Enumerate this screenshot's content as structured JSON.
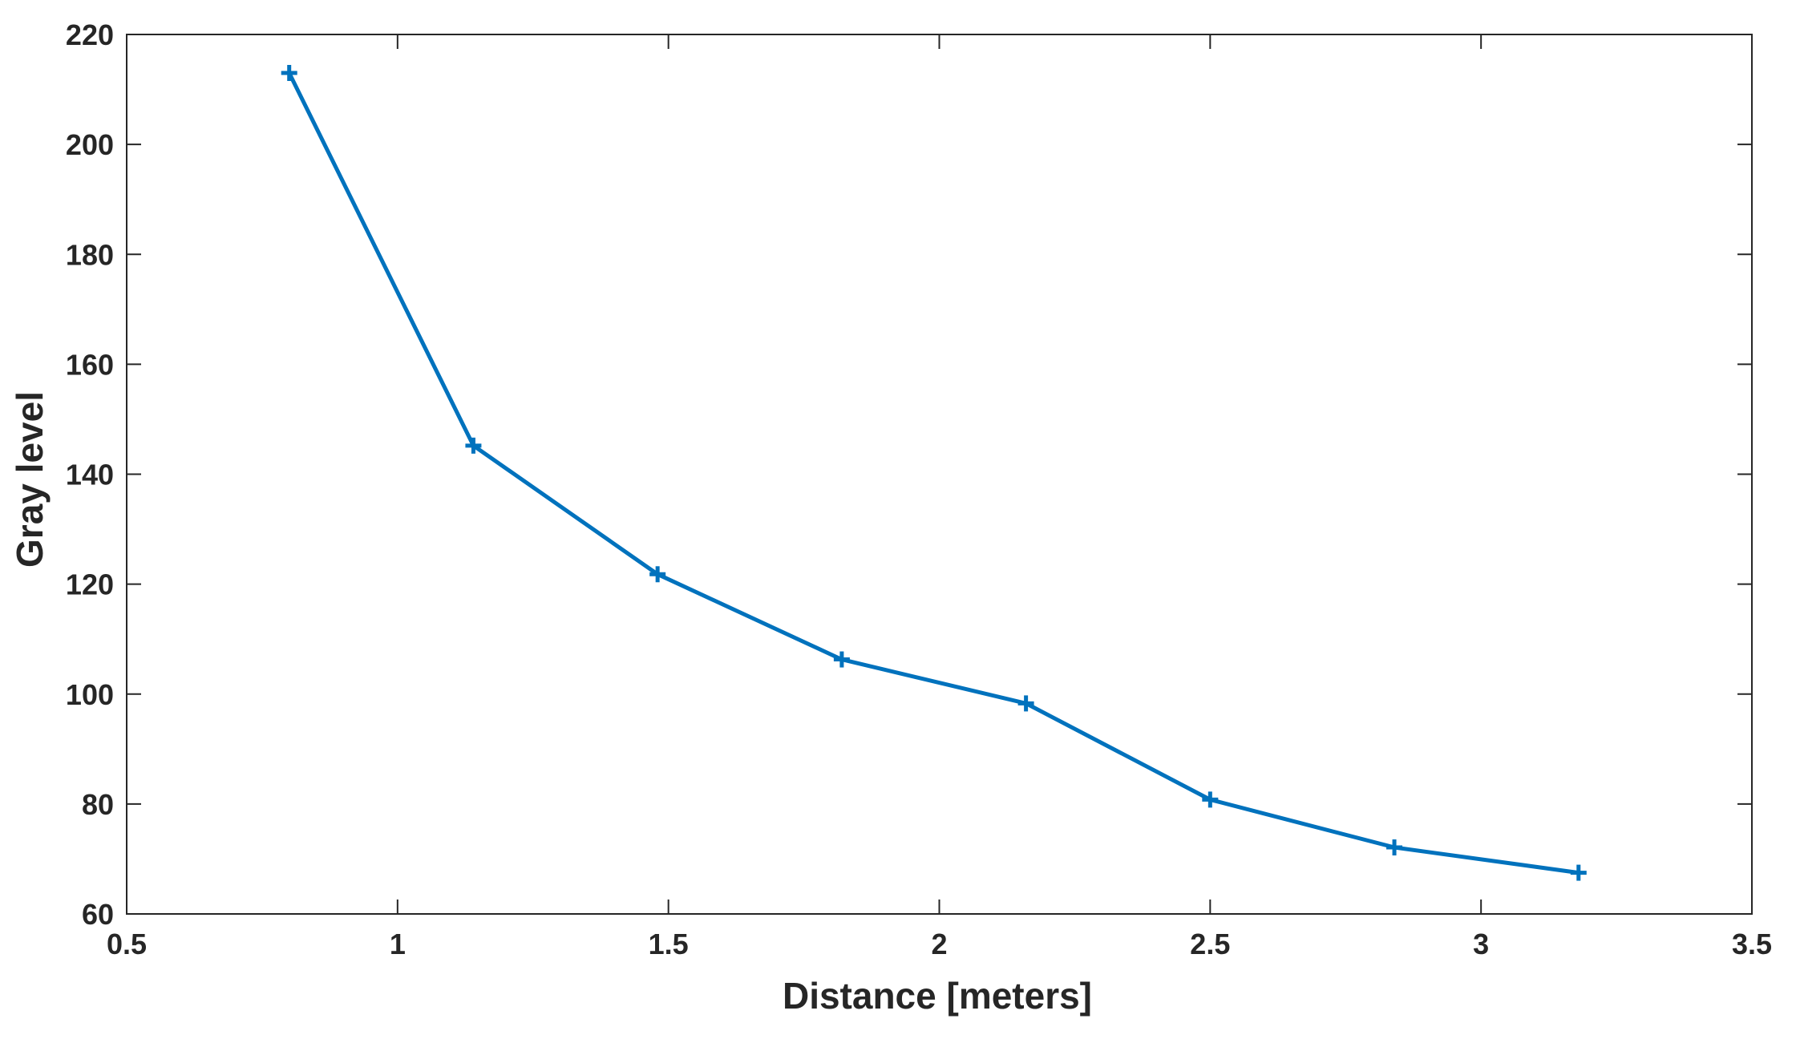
{
  "chart_data": {
    "type": "line",
    "title": "",
    "xlabel": "Distance [meters]",
    "ylabel": "Gray level",
    "xlim": [
      0.5,
      3.5
    ],
    "ylim": [
      60,
      220
    ],
    "xticks": [
      0.5,
      1,
      1.5,
      2,
      2.5,
      3,
      3.5
    ],
    "xtick_labels": [
      "0.5",
      "1",
      "1.5",
      "2",
      "2.5",
      "3",
      "3.5"
    ],
    "yticks": [
      60,
      80,
      100,
      120,
      140,
      160,
      180,
      200,
      220
    ],
    "ytick_labels": [
      "60",
      "80",
      "100",
      "120",
      "140",
      "160",
      "180",
      "200",
      "220"
    ],
    "grid": false,
    "box": true,
    "series": [
      {
        "color": "#0072BD",
        "marker": "plus",
        "x": [
          0.8,
          1.14,
          1.48,
          1.82,
          2.16,
          2.5,
          2.84,
          3.18
        ],
        "y": [
          213,
          145.2,
          121.8,
          106.3,
          98.3,
          80.8,
          72.1,
          67.5
        ]
      }
    ]
  }
}
